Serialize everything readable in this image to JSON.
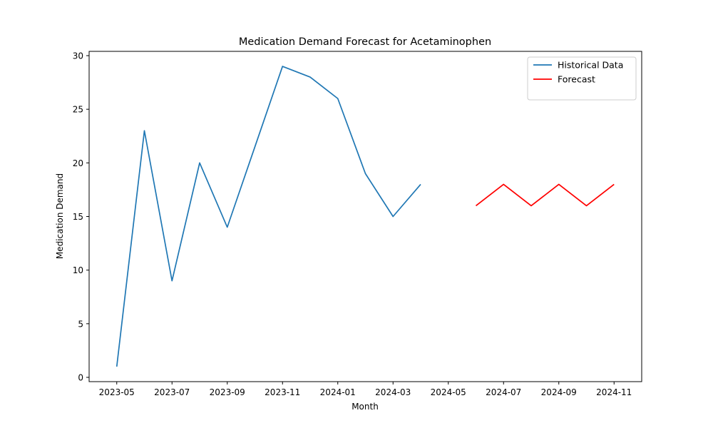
{
  "chart_data": {
    "type": "line",
    "title": "Medication Demand Forecast for Acetaminophen",
    "xlabel": "Month",
    "ylabel": "Medication Demand",
    "xlim": [
      "2023-04-01",
      "2024-12-01"
    ],
    "ylim": [
      -0.4,
      30.4
    ],
    "x_ticks": [
      "2023-05",
      "2023-07",
      "2023-09",
      "2023-11",
      "2024-01",
      "2024-03",
      "2024-05",
      "2024-07",
      "2024-09",
      "2024-11"
    ],
    "y_ticks": [
      0,
      5,
      10,
      15,
      20,
      25,
      30
    ],
    "grid": false,
    "legend_position": "top-right",
    "series": [
      {
        "name": "Historical Data",
        "color": "#1f77b4",
        "x": [
          "2023-05",
          "2023-06",
          "2023-07",
          "2023-08",
          "2023-09",
          "2023-10",
          "2023-11",
          "2023-12",
          "2024-01",
          "2024-02",
          "2024-03",
          "2024-04"
        ],
        "values": [
          1,
          23,
          9,
          20,
          14,
          21.5,
          29,
          28,
          26,
          19,
          15,
          18
        ]
      },
      {
        "name": "Forecast",
        "color": "#ff0000",
        "x": [
          "2024-06",
          "2024-07",
          "2024-08",
          "2024-09",
          "2024-10",
          "2024-11"
        ],
        "values": [
          16,
          18,
          16,
          18,
          16,
          18
        ]
      }
    ]
  }
}
